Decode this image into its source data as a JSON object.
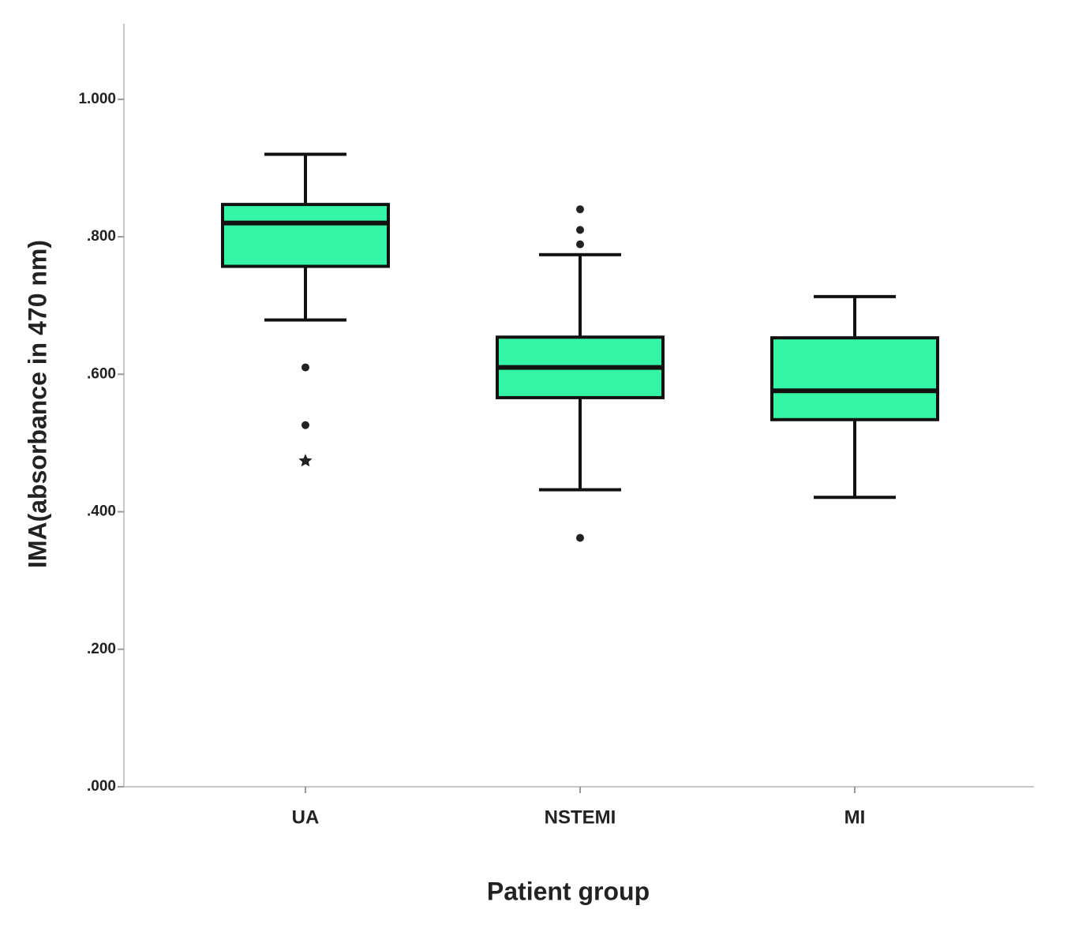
{
  "chart_data": {
    "type": "box",
    "x_label": "Patient group",
    "y_label": "IMA(absorbance in 470 nm)",
    "categories": [
      "UA",
      "NSTEMI",
      "MI"
    ],
    "color": "#33f5a5",
    "ylim": [
      0,
      1.11
    ],
    "yticks": [
      {
        "value": 0,
        "label": ".000"
      },
      {
        "value": 0.2,
        "label": ".200"
      },
      {
        "value": 0.4,
        "label": ".400"
      },
      {
        "value": 0.6,
        "label": ".600"
      },
      {
        "value": 0.8,
        "label": ".800"
      },
      {
        "value": 1,
        "label": "1.000"
      }
    ],
    "boxes": [
      {
        "min": 0.679,
        "q1": 0.757,
        "median": 0.82,
        "q3": 0.847,
        "max": 0.92,
        "outliers": [
          0.61,
          0.526
        ],
        "extremes": [
          0.474
        ]
      },
      {
        "min": 0.432,
        "q1": 0.566,
        "median": 0.61,
        "q3": 0.654,
        "max": 0.774,
        "outliers": [
          0.84,
          0.81,
          0.789,
          0.362
        ],
        "extremes": []
      },
      {
        "min": 0.421,
        "q1": 0.534,
        "median": 0.576,
        "q3": 0.653,
        "max": 0.713,
        "outliers": [],
        "extremes": []
      }
    ]
  }
}
